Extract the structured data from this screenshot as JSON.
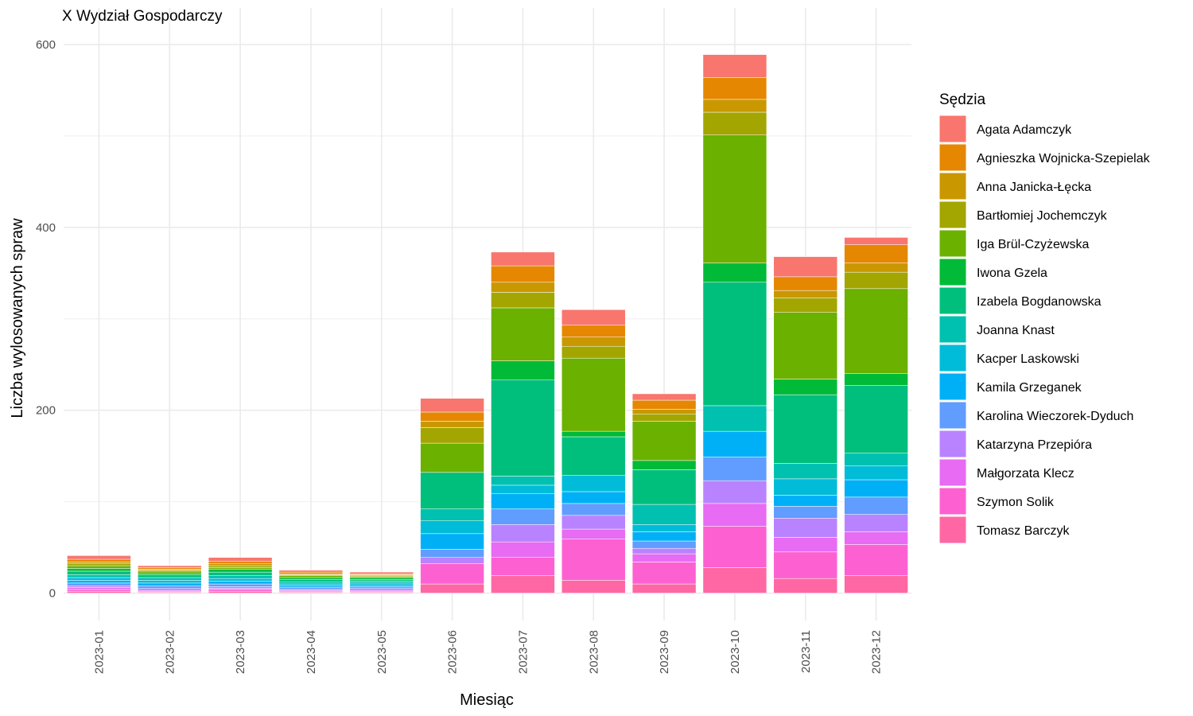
{
  "chart_data": {
    "type": "bar",
    "stacked": true,
    "title": "X Wydział Gospodarczy",
    "xlabel": "Miesiąc",
    "ylabel": "Liczba wylosowanych spraw",
    "ylim": [
      -30,
      640
    ],
    "yticks": [
      0,
      200,
      400,
      600
    ],
    "grid": true,
    "legend_title": "Sędzia",
    "legend_position": "right",
    "categories": [
      "2023-01",
      "2023-02",
      "2023-03",
      "2023-04",
      "2023-05",
      "2023-06",
      "2023-07",
      "2023-08",
      "2023-09",
      "2023-10",
      "2023-11",
      "2023-12"
    ],
    "series": [
      {
        "name": "Agata Adamczyk",
        "color": "#F8766D",
        "values": [
          4,
          2,
          4,
          2,
          2,
          15,
          15,
          17,
          7,
          25,
          22,
          8
        ]
      },
      {
        "name": "Agnieszka Wojnicka-Szepielak",
        "color": "#E58700",
        "values": [
          3,
          2,
          3,
          2,
          1,
          10,
          18,
          13,
          10,
          24,
          15,
          20
        ]
      },
      {
        "name": "Anna Janicka-Łęcka",
        "color": "#C99800",
        "values": [
          2,
          1,
          2,
          1,
          1,
          7,
          11,
          10,
          5,
          14,
          8,
          10
        ]
      },
      {
        "name": "Bartłomiej Jochemczyk",
        "color": "#A3A500",
        "values": [
          2,
          1,
          2,
          1,
          1,
          17,
          17,
          13,
          8,
          25,
          16,
          18
        ]
      },
      {
        "name": "Iga Brül-Czyżewska",
        "color": "#6BB100",
        "values": [
          3,
          2,
          2,
          2,
          1,
          32,
          58,
          80,
          43,
          140,
          73,
          93
        ]
      },
      {
        "name": "Iwona Gzela",
        "color": "#00BA38",
        "values": [
          3,
          2,
          3,
          2,
          2,
          0,
          21,
          6,
          10,
          21,
          17,
          13
        ]
      },
      {
        "name": "Izabela Bogdanowska",
        "color": "#00BF7D",
        "values": [
          4,
          3,
          4,
          3,
          2,
          40,
          105,
          42,
          38,
          135,
          75,
          74
        ]
      },
      {
        "name": "Joanna Knast",
        "color": "#00C0AF",
        "values": [
          3,
          3,
          3,
          2,
          2,
          13,
          10,
          0,
          22,
          28,
          17,
          14
        ]
      },
      {
        "name": "Kacper Laskowski",
        "color": "#00BCD8",
        "values": [
          3,
          3,
          3,
          2,
          2,
          14,
          9,
          18,
          8,
          0,
          18,
          15
        ]
      },
      {
        "name": "Kamila Grzeganek",
        "color": "#00B0F6",
        "values": [
          3,
          3,
          3,
          2,
          2,
          17,
          17,
          13,
          10,
          28,
          12,
          19
        ]
      },
      {
        "name": "Karolina Wieczorek-Dyduch",
        "color": "#619CFF",
        "values": [
          3,
          3,
          3,
          2,
          2,
          9,
          17,
          13,
          8,
          26,
          13,
          19
        ]
      },
      {
        "name": "Katarzyna Przepióra",
        "color": "#B983FF",
        "values": [
          2,
          2,
          2,
          1,
          2,
          7,
          19,
          15,
          6,
          25,
          21,
          19
        ]
      },
      {
        "name": "Małgorzata Klecz",
        "color": "#E76BF3",
        "values": [
          2,
          1,
          1,
          1,
          1,
          0,
          17,
          11,
          9,
          25,
          16,
          14
        ]
      },
      {
        "name": "Szymon Solik",
        "color": "#FD61D1",
        "values": [
          2,
          1,
          2,
          1,
          1,
          22,
          20,
          45,
          24,
          45,
          29,
          34
        ]
      },
      {
        "name": "Tomasz Barczyk",
        "color": "#FF67A4",
        "values": [
          2,
          1,
          2,
          1,
          1,
          10,
          19,
          14,
          10,
          28,
          16,
          19
        ]
      }
    ]
  }
}
